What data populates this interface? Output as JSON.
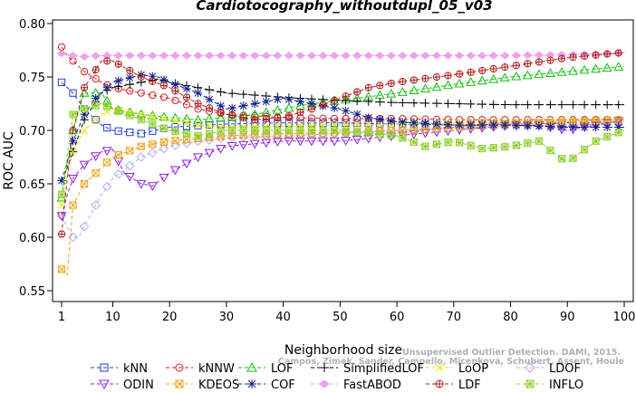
{
  "watermark": {
    "line1": "Unsupervised Outlier Detection. DAMI, 2015.",
    "line2": "Campos, Zimek, Sander, Campello, Micenkova, Schubert, Assent, Houle"
  },
  "colors": {
    "kNN": "#1f3fd0",
    "kNNW": "#d02020",
    "LOF": "#10c010",
    "SimplifiedLOF": "#000000",
    "LoOP": "#e8e800",
    "LDOF": "#b0b0f0",
    "ODIN": "#9020e0",
    "KDEOS": "#f0a020",
    "COF": "#102090",
    "FastABOD": "#f0a0f0",
    "LDF": "#b02020",
    "INFLO": "#90d030"
  },
  "chart_data": {
    "type": "line",
    "title": "Cardiotocography_withoutdupl_05_v03",
    "xlabel": "Neighborhood size",
    "ylabel": "ROC AUC",
    "xlim": [
      1,
      100
    ],
    "ylim": [
      0.55,
      0.8
    ],
    "xticks": [
      "1",
      "10",
      "20",
      "30",
      "40",
      "50",
      "60",
      "70",
      "80",
      "90",
      "100"
    ],
    "yticks": [
      "0.55",
      "0.60",
      "0.65",
      "0.70",
      "0.75",
      "0.80"
    ],
    "grid": false,
    "legend": "bottom",
    "series": [
      {
        "name": "kNN",
        "marker": "square",
        "dash": "dash",
        "x": [
          1,
          2,
          3,
          5,
          8,
          10,
          15,
          20,
          30,
          40,
          50,
          60,
          70,
          80,
          90,
          100
        ],
        "values": [
          0.745,
          0.74,
          0.735,
          0.72,
          0.705,
          0.7,
          0.697,
          0.703,
          0.706,
          0.707,
          0.707,
          0.706,
          0.705,
          0.706,
          0.707,
          0.708
        ]
      },
      {
        "name": "kNNW",
        "marker": "circle",
        "dash": "dash",
        "x": [
          1,
          2,
          3,
          5,
          8,
          10,
          15,
          20,
          25,
          30,
          40,
          50,
          60,
          70,
          80,
          90,
          100
        ],
        "values": [
          0.778,
          0.77,
          0.765,
          0.755,
          0.745,
          0.74,
          0.735,
          0.73,
          0.72,
          0.715,
          0.712,
          0.711,
          0.711,
          0.71,
          0.71,
          0.71,
          0.71
        ]
      },
      {
        "name": "LOF",
        "marker": "triangle-up",
        "dash": "dash",
        "x": [
          1,
          2,
          3,
          5,
          8,
          10,
          15,
          20,
          25,
          30,
          35,
          40,
          45,
          50,
          60,
          70,
          80,
          90,
          100
        ],
        "values": [
          0.637,
          0.67,
          0.7,
          0.735,
          0.735,
          0.72,
          0.715,
          0.712,
          0.71,
          0.712,
          0.715,
          0.72,
          0.725,
          0.728,
          0.735,
          0.743,
          0.75,
          0.755,
          0.76
        ]
      },
      {
        "name": "SimplifiedLOF",
        "marker": "plus",
        "dash": "dash",
        "x": [
          1,
          2,
          3,
          5,
          8,
          10,
          15,
          18,
          20,
          25,
          30,
          40,
          50,
          60,
          70,
          80,
          90,
          100
        ],
        "values": [
          0.653,
          0.665,
          0.68,
          0.71,
          0.735,
          0.74,
          0.745,
          0.748,
          0.745,
          0.74,
          0.735,
          0.731,
          0.728,
          0.726,
          0.725,
          0.724,
          0.724,
          0.724
        ]
      },
      {
        "name": "LoOP",
        "marker": "cross",
        "dash": "dash",
        "x": [
          1,
          2,
          3,
          5,
          8,
          10,
          15,
          20,
          25,
          30,
          40,
          50,
          60,
          70,
          80,
          90,
          100
        ],
        "values": [
          0.63,
          0.66,
          0.68,
          0.7,
          0.715,
          0.72,
          0.715,
          0.71,
          0.705,
          0.703,
          0.704,
          0.705,
          0.706,
          0.707,
          0.708,
          0.709,
          0.71
        ]
      },
      {
        "name": "LDOF",
        "marker": "diamond",
        "dash": "dash",
        "x": [
          1,
          2,
          3,
          4,
          5,
          8,
          10,
          15,
          20,
          25,
          30,
          40,
          50,
          60,
          70,
          80,
          90,
          100
        ],
        "values": [
          0.62,
          0.61,
          0.6,
          0.6,
          0.61,
          0.64,
          0.655,
          0.675,
          0.685,
          0.69,
          0.693,
          0.695,
          0.697,
          0.7,
          0.702,
          0.704,
          0.705,
          0.706
        ]
      },
      {
        "name": "ODIN",
        "marker": "triangle-down",
        "dash": "dash",
        "x": [
          1,
          2,
          3,
          5,
          8,
          10,
          12,
          15,
          17,
          20,
          25,
          30,
          40,
          45,
          50,
          60,
          70,
          80,
          85,
          90,
          95,
          100
        ],
        "values": [
          0.62,
          0.64,
          0.655,
          0.668,
          0.68,
          0.682,
          0.66,
          0.65,
          0.648,
          0.66,
          0.675,
          0.685,
          0.69,
          0.69,
          0.69,
          0.695,
          0.7,
          0.705,
          0.705,
          0.7,
          0.705,
          0.71
        ]
      },
      {
        "name": "KDEOS",
        "marker": "square-x",
        "dash": "dash",
        "x": [
          1,
          2,
          3,
          5,
          8,
          10,
          15,
          20,
          30,
          40,
          50,
          60,
          70,
          80,
          90,
          100
        ],
        "values": [
          0.57,
          0.565,
          0.63,
          0.65,
          0.665,
          0.675,
          0.685,
          0.69,
          0.695,
          0.697,
          0.698,
          0.7,
          0.703,
          0.706,
          0.708,
          0.71
        ]
      },
      {
        "name": "COF",
        "marker": "asterisk",
        "dash": "dash",
        "x": [
          1,
          2,
          3,
          5,
          7,
          10,
          12,
          15,
          18,
          20,
          25,
          30,
          35,
          40,
          45,
          50,
          55,
          60,
          70,
          80,
          90,
          100
        ],
        "values": [
          0.653,
          0.67,
          0.69,
          0.715,
          0.73,
          0.745,
          0.748,
          0.752,
          0.75,
          0.745,
          0.735,
          0.72,
          0.725,
          0.73,
          0.725,
          0.72,
          0.712,
          0.708,
          0.705,
          0.705,
          0.703,
          0.703
        ]
      },
      {
        "name": "FastABOD",
        "marker": "diamond-filled",
        "dash": "dash",
        "x": [
          1,
          2,
          3,
          5,
          8,
          10,
          15,
          20,
          30,
          40,
          50,
          60,
          70,
          80,
          90,
          100
        ],
        "values": [
          0.772,
          0.771,
          0.77,
          0.769,
          0.77,
          0.77,
          0.77,
          0.77,
          0.77,
          0.77,
          0.77,
          0.77,
          0.77,
          0.77,
          0.771,
          0.772
        ]
      },
      {
        "name": "LDF",
        "marker": "circle-plus",
        "dash": "dash",
        "x": [
          1,
          2,
          3,
          5,
          8,
          10,
          15,
          20,
          25,
          30,
          35,
          40,
          45,
          50,
          55,
          60,
          70,
          80,
          90,
          100
        ],
        "values": [
          0.603,
          0.655,
          0.7,
          0.74,
          0.765,
          0.765,
          0.75,
          0.74,
          0.725,
          0.715,
          0.71,
          0.712,
          0.72,
          0.73,
          0.74,
          0.745,
          0.752,
          0.76,
          0.768,
          0.773
        ]
      },
      {
        "name": "INFLO",
        "marker": "square-star",
        "dash": "dash",
        "x": [
          1,
          3,
          5,
          8,
          10,
          15,
          20,
          25,
          30,
          40,
          50,
          60,
          65,
          70,
          75,
          80,
          85,
          88,
          90,
          95,
          100
        ],
        "values": [
          0.64,
          0.715,
          0.72,
          0.725,
          0.72,
          0.71,
          0.7,
          0.695,
          0.7,
          0.7,
          0.7,
          0.695,
          0.685,
          0.69,
          0.683,
          0.685,
          0.69,
          0.677,
          0.67,
          0.69,
          0.7
        ]
      }
    ]
  }
}
